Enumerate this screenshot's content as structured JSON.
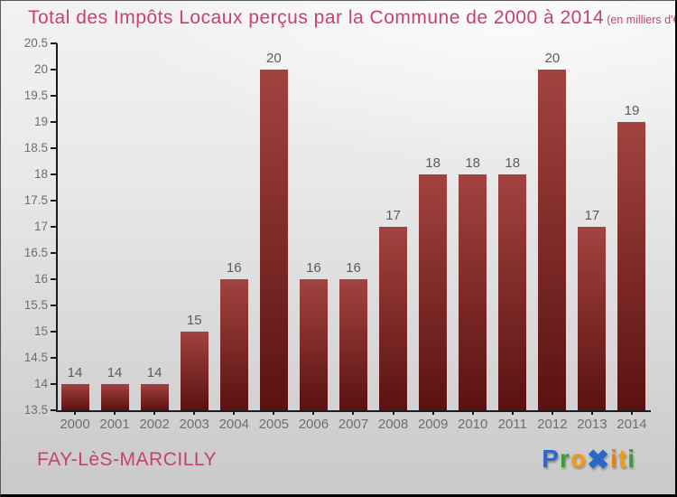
{
  "title": "Total des Impôts Locaux perçus par la Commune de 2000 à 2014",
  "subtitle": "(en milliers d'€)",
  "title_color": "#cd4168",
  "footer": {
    "commune": "FAY-LèS-MARCILLY",
    "commune_color": "#c8416b"
  },
  "logo": {
    "name": "Proxiti",
    "letters": [
      {
        "ch": "P",
        "color": "#2a69c5"
      },
      {
        "ch": "r",
        "color": "#3b9b3b"
      },
      {
        "ch": "o",
        "color": "#f49a0b"
      },
      {
        "ch": "x",
        "glyph": "✖",
        "color": "#2a69c5"
      },
      {
        "ch": "i",
        "color": "#ef7d0e"
      },
      {
        "ch": "t",
        "color": "#f49a0b"
      },
      {
        "ch": "i",
        "color": "#3b9b3b"
      }
    ]
  },
  "chart_data": {
    "type": "bar",
    "title": "Total des Impôts Locaux perçus par la Commune de 2000 à 2014",
    "subtitle": "(en milliers d'€)",
    "xlabel": "",
    "ylabel": "",
    "categories": [
      "2000",
      "2001",
      "2002",
      "2003",
      "2004",
      "2005",
      "2006",
      "2007",
      "2008",
      "2009",
      "2010",
      "2011",
      "2012",
      "2013",
      "2014"
    ],
    "values": [
      14,
      14,
      14,
      15,
      16,
      20,
      16,
      16,
      17,
      18,
      18,
      18,
      20,
      17,
      19
    ],
    "ylim": [
      13.5,
      20.5
    ],
    "ytick_step": 0.5,
    "grid": false,
    "legend": false,
    "value_labels_shown": true,
    "bar_gradient_top": "#a24340",
    "bar_gradient_bottom": "#5a1211",
    "axis_color": "#1c1c1c",
    "tick_label_color": "#6e6e6e",
    "value_label_color": "#5c5c5c"
  }
}
